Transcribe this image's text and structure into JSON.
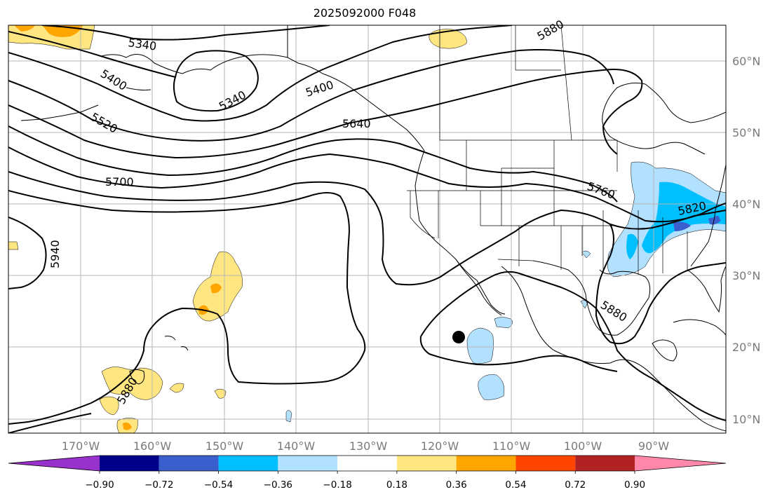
{
  "title": "2025092000 F048",
  "lat_ticks": [
    "60°N",
    "50°N",
    "40°N",
    "30°N",
    "20°N",
    "10°N"
  ],
  "lon_ticks": [
    "170°W",
    "160°W",
    "150°W",
    "140°W",
    "130°W",
    "120°W",
    "110°W",
    "100°W",
    "90°W"
  ],
  "contour_labels": [
    "5340",
    "5340",
    "5400",
    "5400",
    "5520",
    "5640",
    "5700",
    "5760",
    "5820",
    "5880",
    "5880",
    "5940",
    "5880"
  ],
  "colorbar": {
    "labels": [
      "−0.90",
      "−0.72",
      "−0.54",
      "−0.36",
      "−0.18",
      "0.18",
      "0.36",
      "0.54",
      "0.72",
      "0.90"
    ],
    "colors": [
      "#9932cc",
      "#00008b",
      "#3a5fcd",
      "#00bfff",
      "#b2e0ff",
      "#ffffff",
      "#ffe680",
      "#ffa500",
      "#ff4500",
      "#b22222",
      "#ff88aa"
    ]
  }
}
